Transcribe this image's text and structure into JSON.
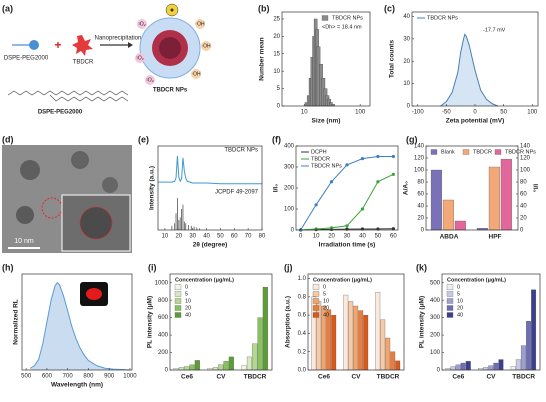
{
  "panel_labels": [
    "(a)",
    "(b)",
    "(c)",
    "(d)",
    "(e)",
    "(f)",
    "(g)",
    "(h)",
    "(i)",
    "(j)",
    "(k)"
  ],
  "scheme": {
    "labels": [
      "DSPE-PEG2000",
      "TBDCR",
      "Nanoprecipitation",
      "TBDCR NPs",
      "DSPE-PEG2000"
    ],
    "singlet": "¹O₂",
    "hydroxyl": "·OH"
  },
  "images": {
    "tem_scale": "10 nm"
  },
  "chart_data": [
    {
      "type": "bar",
      "x": [
        11,
        12,
        13,
        14,
        15,
        16,
        17,
        18,
        20,
        22,
        24,
        26,
        28,
        30,
        33
      ],
      "series": [
        {
          "name": "TBDCR NPs",
          "color": "#8a8a8a",
          "values": [
            1,
            3,
            8,
            14,
            20,
            25,
            22,
            17,
            12,
            8,
            5,
            3,
            2,
            1,
            0.5
          ]
        }
      ],
      "xlog": true,
      "xlim": [
        4,
        150
      ],
      "xticks": [
        10,
        100
      ],
      "ylim": [
        0,
        27
      ],
      "yticks": [
        0,
        5,
        10,
        15,
        20,
        25
      ],
      "xlabel": "Size (nm)",
      "ylabel": "Number mean",
      "legend": "upper right",
      "annotations": [
        "<Dh> = 18.4 nm"
      ]
    },
    {
      "type": "line",
      "x": [
        -60,
        -50,
        -40,
        -30,
        -25,
        -20,
        -17.7,
        -15,
        -10,
        0,
        10,
        20,
        30,
        40
      ],
      "series": [
        {
          "name": "TBDCR NPs",
          "color": "#4a7fb5",
          "fill": "#d6e5f3",
          "values": [
            0,
            2,
            6,
            15,
            24,
            30,
            32,
            31,
            27,
            16,
            7,
            3,
            1,
            0
          ]
        }
      ],
      "xlim": [
        -110,
        110
      ],
      "xticks": [
        -100,
        -50,
        0,
        50,
        100
      ],
      "ylim": [
        0,
        42
      ],
      "yticks": [
        0,
        10,
        20,
        30,
        40
      ],
      "xlabel": "Zeta potential (mV)",
      "ylabel": "Total counts",
      "legend": "upper left",
      "annotations": [
        "-17.7 mV"
      ]
    },
    {
      "type": "line",
      "xlim": [
        5,
        80
      ],
      "xticks": [
        10,
        20,
        30,
        40,
        50,
        60,
        70,
        80
      ],
      "ylim": [
        0,
        100
      ],
      "xlabel": "2θ (degree)",
      "ylabel": "Intensity (a.u.)",
      "series": [
        {
          "name": "TBDCR NPs",
          "color": "#3d9ad1",
          "x": [
            5,
            15,
            17,
            18,
            19,
            20,
            21,
            22,
            23,
            24,
            25,
            26,
            28,
            30,
            40,
            50,
            60,
            70,
            80
          ],
          "values": [
            57,
            57,
            58,
            62,
            88,
            63,
            58,
            61,
            86,
            70,
            62,
            58,
            57,
            56,
            56,
            55,
            55,
            55,
            55
          ]
        },
        {
          "name": "JCPDF 49-2097",
          "color": "#555555",
          "style": "stick",
          "x": [
            15,
            17,
            18,
            19,
            20,
            21,
            22,
            23,
            24,
            25,
            27,
            29,
            31,
            33,
            35
          ],
          "values": [
            5,
            8,
            20,
            38,
            12,
            15,
            25,
            30,
            10,
            8,
            6,
            5,
            4,
            3,
            2
          ]
        }
      ]
    },
    {
      "type": "line",
      "x": [
        0,
        10,
        20,
        30,
        40,
        50,
        60
      ],
      "markers": true,
      "series": [
        {
          "name": "DCPH",
          "color": "#333333",
          "values": [
            0,
            2,
            3,
            4,
            5,
            5,
            6
          ]
        },
        {
          "name": "TBDCR",
          "color": "#3aa33a",
          "values": [
            0,
            5,
            10,
            20,
            100,
            230,
            265
          ]
        },
        {
          "name": "TBDCR NPs",
          "color": "#3d7fc4",
          "values": [
            0,
            120,
            230,
            310,
            340,
            350,
            350
          ]
        }
      ],
      "xlim": [
        -3,
        63
      ],
      "xticks": [
        0,
        10,
        20,
        30,
        40,
        50,
        60
      ],
      "ylim": [
        0,
        400
      ],
      "yticks": [
        0,
        100,
        200,
        300,
        400
      ],
      "xlabel": "Irradiation time (s)",
      "ylabel": "I/I₀",
      "legend": "upper left"
    },
    {
      "type": "bar",
      "categories": [
        "ABDA",
        "HPF"
      ],
      "series": [
        {
          "name": "Blank",
          "color": "#7a72b8",
          "values": [
            100,
            3
          ]
        },
        {
          "name": "TBDCR",
          "color": "#f3a878",
          "values": [
            50,
            105
          ]
        },
        {
          "name": "TBDCR NPs",
          "color": "#e2679a",
          "values": [
            15,
            118
          ]
        }
      ],
      "ylim": [
        0,
        140
      ],
      "yticks": [
        0,
        20,
        40,
        60,
        80,
        100,
        120,
        140
      ],
      "y2lim": [
        0,
        140
      ],
      "y2ticks": [
        0,
        20,
        40,
        60,
        80,
        100,
        120,
        140
      ],
      "ylabel": "A/A₀",
      "y2label": "I/I₀",
      "legend": "upper left"
    },
    {
      "type": "line",
      "x": [
        520,
        540,
        560,
        580,
        600,
        620,
        640,
        650,
        660,
        680,
        700,
        720,
        740,
        760,
        780,
        800,
        840,
        880,
        920,
        960,
        1000
      ],
      "series": [
        {
          "color": "#5b9bd5",
          "fill": "#c9dcf0",
          "values": [
            0.02,
            0.05,
            0.12,
            0.3,
            0.55,
            0.8,
            0.97,
            1.0,
            0.98,
            0.85,
            0.68,
            0.5,
            0.36,
            0.25,
            0.17,
            0.11,
            0.05,
            0.02,
            0.01,
            0.005,
            0
          ]
        }
      ],
      "xlim": [
        480,
        1010
      ],
      "xticks": [
        500,
        600,
        700,
        800,
        900,
        1000
      ],
      "ylim": [
        0,
        1.1
      ],
      "xlabel": "Wavelength (nm)",
      "ylabel": "Normalized RL"
    },
    {
      "type": "bar",
      "categories": [
        "Ce6",
        "CV",
        "TBDCR"
      ],
      "legend_title": "Concentration (μg/mL)",
      "series": [
        {
          "name": "0",
          "color": "#f1f7e8",
          "values": [
            20,
            20,
            50
          ]
        },
        {
          "name": "5",
          "color": "#d5eac0",
          "values": [
            30,
            30,
            150
          ]
        },
        {
          "name": "10",
          "color": "#b3d98f",
          "values": [
            40,
            60,
            300
          ]
        },
        {
          "name": "20",
          "color": "#88c160",
          "values": [
            60,
            100,
            600
          ]
        },
        {
          "name": "40",
          "color": "#5a9f36",
          "values": [
            110,
            150,
            950
          ]
        }
      ],
      "ylim": [
        0,
        1100
      ],
      "yticks": [
        0,
        200,
        400,
        600,
        800,
        1000
      ],
      "ylabel": "PL intensity (μM)",
      "legend": "upper left"
    },
    {
      "type": "bar",
      "categories": [
        "Ce6",
        "CV",
        "TBDCR"
      ],
      "legend_title": "Concentration (μg/mL)",
      "series": [
        {
          "name": "0",
          "color": "#fbe9dc",
          "values": [
            0.8,
            0.82,
            0.85
          ]
        },
        {
          "name": "5",
          "color": "#f7c9a6",
          "values": [
            0.75,
            0.75,
            0.55
          ]
        },
        {
          "name": "10",
          "color": "#f2a46c",
          "values": [
            0.7,
            0.7,
            0.35
          ]
        },
        {
          "name": "20",
          "color": "#ea7d3b",
          "values": [
            0.66,
            0.65,
            0.2
          ]
        },
        {
          "name": "40",
          "color": "#d9581a",
          "values": [
            0.6,
            0.6,
            0.1
          ]
        }
      ],
      "ylim": [
        0,
        1.05
      ],
      "yticks": [
        {
          "value": 0,
          "label": "0.0"
        },
        0.2,
        0.4,
        0.6,
        0.8,
        {
          "value": 1,
          "label": "1.0"
        }
      ],
      "ylabel": "Absorption (a.u.)",
      "legend": "upper left"
    },
    {
      "type": "bar",
      "categories": [
        "Ce6",
        "CV",
        "TBDCR"
      ],
      "legend_title": "Concentration (μg/mL)",
      "series": [
        {
          "name": "0",
          "color": "#eeeef7",
          "values": [
            10,
            10,
            20
          ]
        },
        {
          "name": "5",
          "color": "#c9c9e6",
          "values": [
            20,
            15,
            60
          ]
        },
        {
          "name": "10",
          "color": "#9d9fd0",
          "values": [
            30,
            25,
            140
          ]
        },
        {
          "name": "20",
          "color": "#6b6fb4",
          "values": [
            40,
            40,
            280
          ]
        },
        {
          "name": "40",
          "color": "#3b3f8e",
          "values": [
            50,
            60,
            460
          ]
        }
      ],
      "ylim": [
        0,
        550
      ],
      "yticks": [
        0,
        100,
        200,
        300,
        400,
        500
      ],
      "ylabel": "PL intensity (μM)",
      "legend": "upper left"
    }
  ]
}
